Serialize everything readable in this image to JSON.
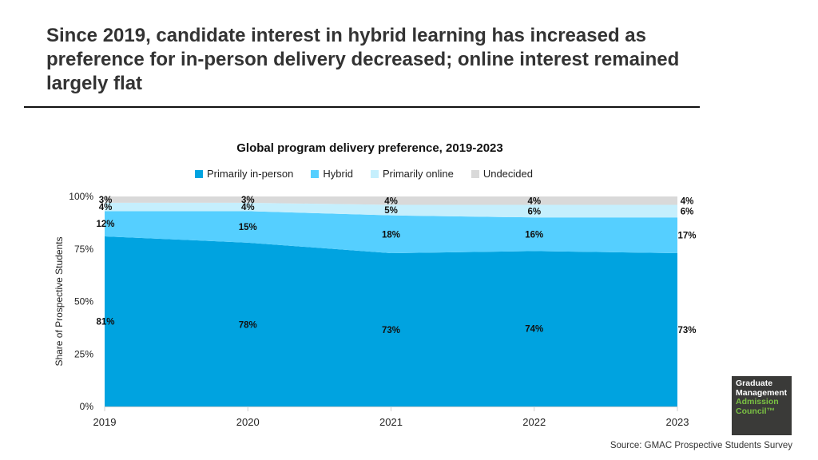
{
  "headline": "Since 2019, candidate interest in hybrid learning has increased as preference for in-person delivery decreased; online interest remained largely flat",
  "source": "Source: GMAC Prospective Students Survey",
  "logo": {
    "line1": "Graduate",
    "line2": "Management",
    "line3": "Admission",
    "line4": "Council™"
  },
  "chart_data": {
    "type": "area",
    "stacked": true,
    "title": "Global program delivery preference, 2019-2023",
    "xlabel": "",
    "ylabel": "Share of Prospective Students",
    "x": [
      "2019",
      "2020",
      "2021",
      "2022",
      "2023"
    ],
    "ylim": [
      0,
      100
    ],
    "yticks": [
      0,
      25,
      50,
      75,
      100
    ],
    "ytick_labels": [
      "0%",
      "25%",
      "50%",
      "75%",
      "100%"
    ],
    "legend_position": "top",
    "series": [
      {
        "name": "Primarily in-person",
        "color": "#00a3e0",
        "values": [
          81,
          78,
          73,
          74,
          73
        ]
      },
      {
        "name": "Hybrid",
        "color": "#55cfff",
        "values": [
          12,
          15,
          18,
          16,
          17
        ]
      },
      {
        "name": "Primarily online",
        "color": "#c5effd",
        "values": [
          4,
          4,
          5,
          6,
          6
        ]
      },
      {
        "name": "Undecided",
        "color": "#d9d9d9",
        "values": [
          3,
          3,
          4,
          4,
          4
        ]
      }
    ]
  }
}
